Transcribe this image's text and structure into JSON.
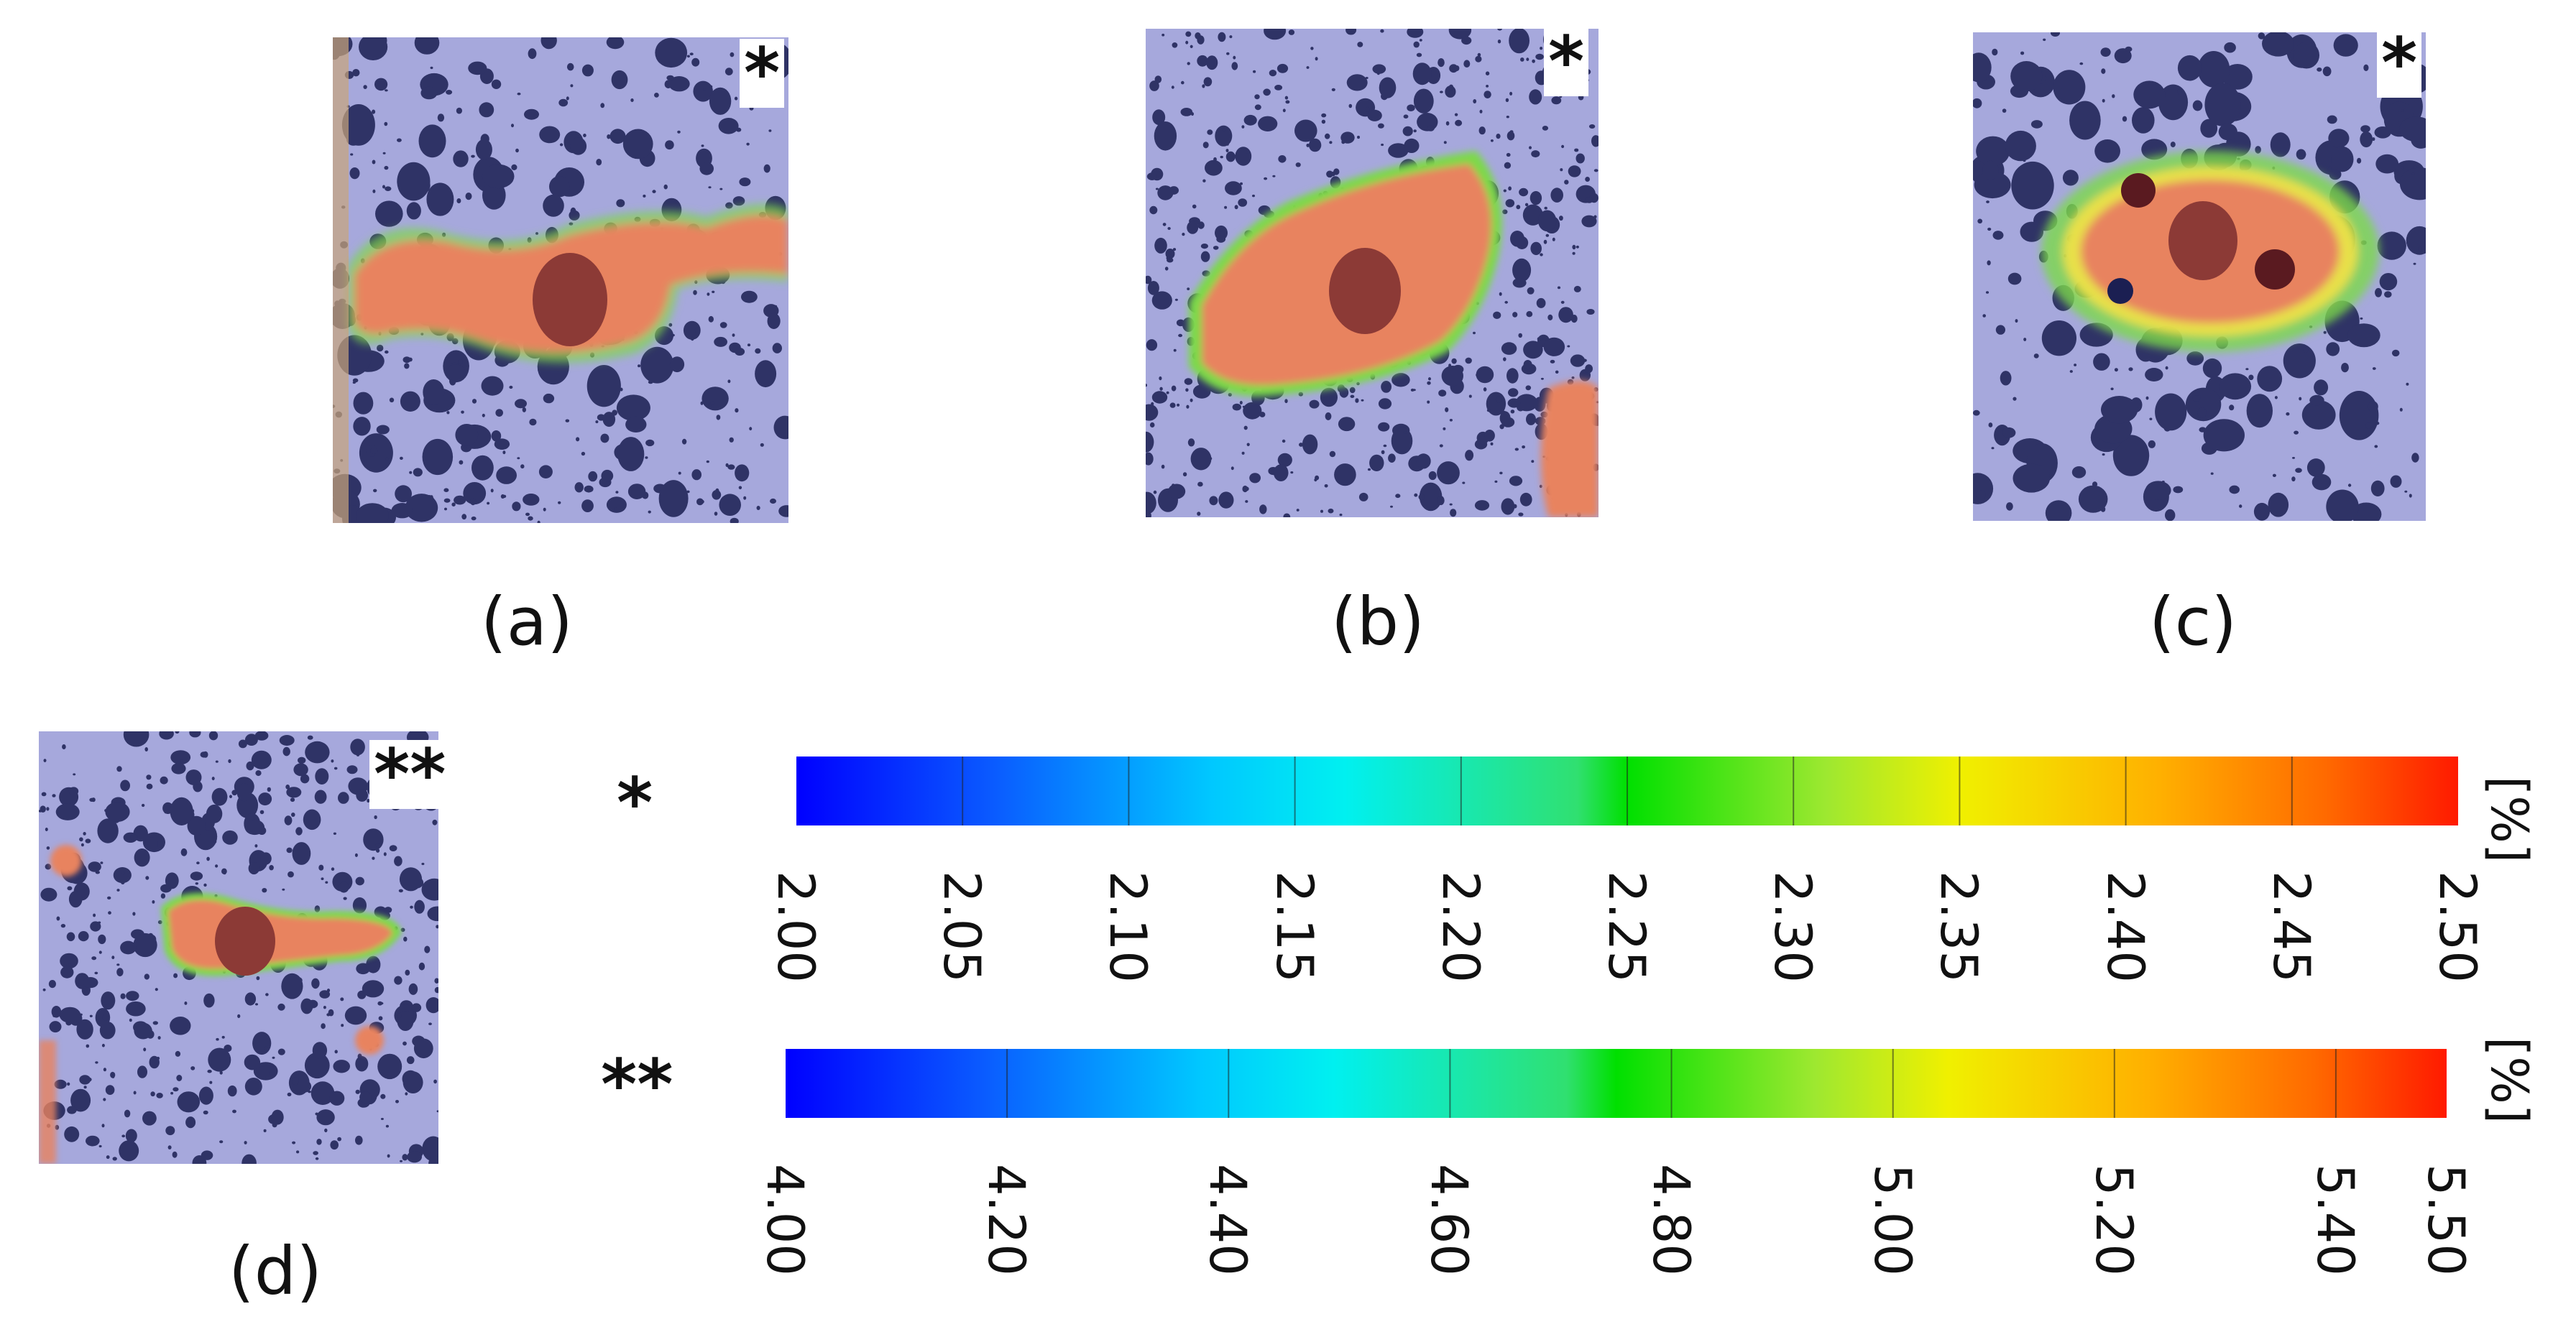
{
  "panels": [
    {
      "id": "a",
      "label": "(a)",
      "marker": "*",
      "scale": "*"
    },
    {
      "id": "b",
      "label": "(b)",
      "marker": "*",
      "scale": "*"
    },
    {
      "id": "c",
      "label": "(c)",
      "marker": "*",
      "scale": "*"
    },
    {
      "id": "d",
      "label": "(d)",
      "marker": "**",
      "scale": "**"
    }
  ],
  "colorbars": [
    {
      "marker": "*",
      "unit": "[%]",
      "ticks": [
        "2.00",
        "2.05",
        "2.10",
        "2.15",
        "2.20",
        "2.25",
        "2.30",
        "2.35",
        "2.40",
        "2.45",
        "2.50"
      ],
      "range": [
        2.0,
        2.5
      ]
    },
    {
      "marker": "**",
      "unit": "[%]",
      "ticks": [
        "4.00",
        "4.20",
        "4.40",
        "4.60",
        "4.80",
        "5.00",
        "5.20",
        "5.40",
        "5.50"
      ],
      "range": [
        4.0,
        5.5
      ]
    }
  ],
  "colors": {
    "background_blue": "#a6a8dc",
    "pore": "#1b1f52",
    "strain_high": "#e8835f",
    "inclusion": "#8c3a36",
    "contour_green": "#7cd94a",
    "contour_yellow": "#e8e04a"
  }
}
